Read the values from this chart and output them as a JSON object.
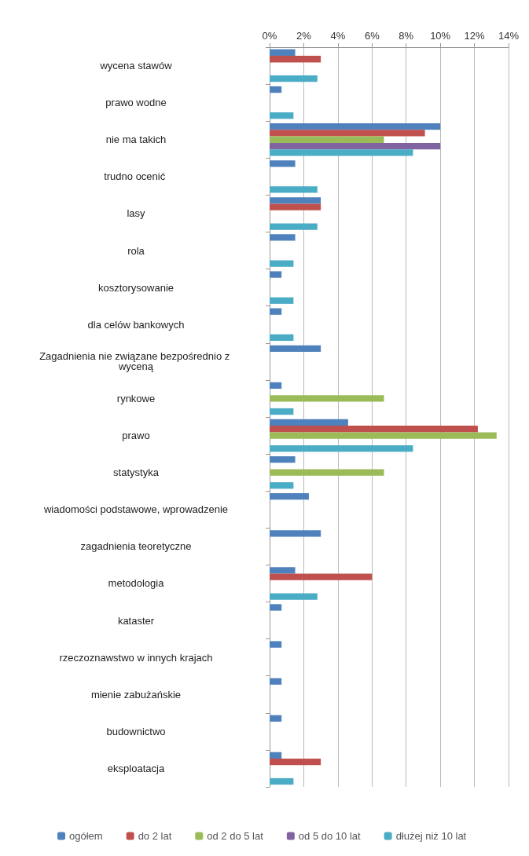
{
  "chart_data": {
    "type": "bar",
    "orientation": "horizontal",
    "categories": [
      "wycena stawów",
      "prawo wodne",
      "nie ma takich",
      "trudno ocenić ",
      "lasy",
      "rola",
      "kosztorysowanie",
      "dla celów bankowych",
      "Zagadnienia nie związane bezpośrednio z wyceną",
      "rynkowe",
      "prawo",
      "statystyka",
      "wiadomości podstawowe, wprowadzenie",
      "zagadnienia teoretyczne",
      "metodologia",
      "kataster",
      "rzeczoznawstwo w innych krajach",
      "mienie zabużańskie",
      "budownictwo",
      "eksploatacja"
    ],
    "series": [
      {
        "name": "ogółem",
        "color": "#4f81bd",
        "values": [
          1.5,
          0.7,
          10.0,
          1.5,
          3.0,
          1.5,
          0.7,
          0.7,
          3.0,
          0.7,
          4.6,
          1.5,
          2.3,
          3.0,
          1.5,
          0.7,
          0.7,
          0.7,
          0.7,
          0.7
        ]
      },
      {
        "name": "do 2 lat",
        "color": "#c0504d",
        "values": [
          3.0,
          null,
          9.1,
          null,
          3.0,
          null,
          null,
          null,
          null,
          null,
          12.2,
          null,
          null,
          null,
          6.0,
          null,
          null,
          null,
          null,
          3.0
        ]
      },
      {
        "name": "od 2 do 5 lat",
        "color": "#9bbb59",
        "values": [
          null,
          null,
          6.7,
          null,
          null,
          null,
          null,
          null,
          null,
          6.7,
          13.3,
          6.7,
          null,
          null,
          null,
          null,
          null,
          null,
          null,
          null
        ]
      },
      {
        "name": "od 5 do 10 lat",
        "color": "#8064a2",
        "values": [
          null,
          null,
          10.0,
          null,
          null,
          null,
          null,
          null,
          null,
          null,
          null,
          null,
          null,
          null,
          null,
          null,
          null,
          null,
          null,
          null
        ]
      },
      {
        "name": "dłużej niż 10 lat",
        "color": "#4bacc6",
        "values": [
          2.8,
          1.4,
          8.4,
          2.8,
          2.8,
          1.4,
          1.4,
          1.4,
          null,
          1.4,
          8.4,
          1.4,
          null,
          null,
          2.8,
          null,
          null,
          null,
          null,
          1.4
        ]
      }
    ],
    "xlim": [
      0,
      14
    ],
    "xticks": [
      {
        "value": 0,
        "label": "0%"
      },
      {
        "value": 2,
        "label": "2%"
      },
      {
        "value": 4,
        "label": "4%"
      },
      {
        "value": 6,
        "label": "6%"
      },
      {
        "value": 8,
        "label": "8%"
      },
      {
        "value": 10,
        "label": "10%"
      },
      {
        "value": 12,
        "label": "12%"
      },
      {
        "value": 14,
        "label": "14%"
      }
    ],
    "grid": "x",
    "legend": "bottom"
  }
}
